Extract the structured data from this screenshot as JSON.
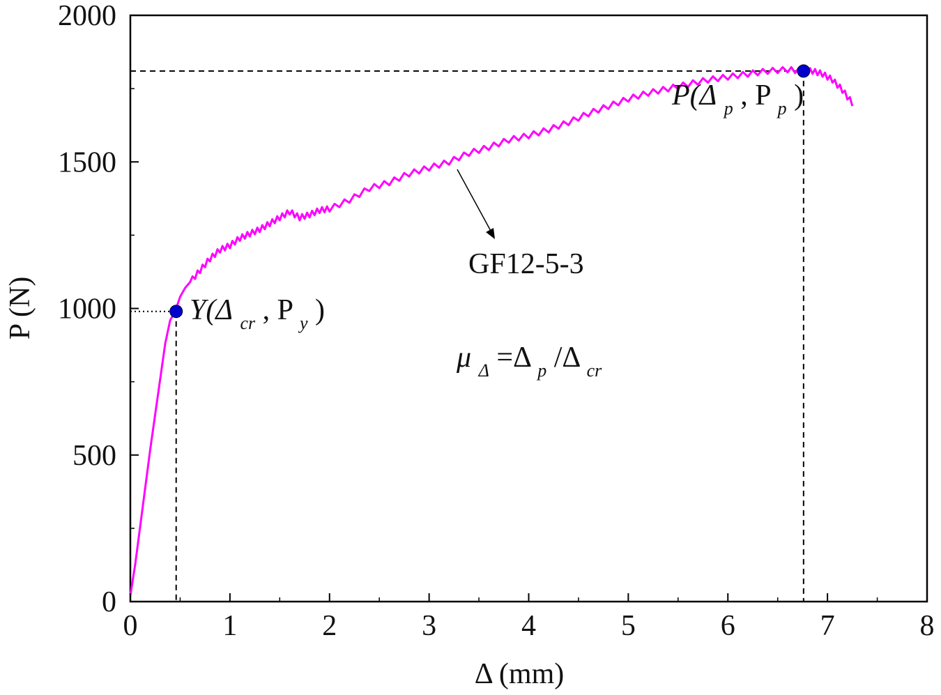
{
  "chart_data": {
    "type": "line",
    "xlabel": "Δ (mm)",
    "ylabel": "P (N)",
    "xlim": [
      0,
      8
    ],
    "ylim": [
      0,
      2000
    ],
    "xticks": [
      0,
      1,
      2,
      3,
      4,
      5,
      6,
      7,
      8
    ],
    "yticks": [
      0,
      500,
      1000,
      1500,
      2000
    ],
    "grid": false,
    "legend": "none",
    "series": [
      {
        "name": "GF12-5-3",
        "color": "#ff00ff",
        "x": [
          0.0,
          0.05,
          0.1,
          0.15,
          0.2,
          0.25,
          0.3,
          0.35,
          0.4,
          0.45,
          0.5,
          0.55,
          0.6,
          0.7,
          0.8,
          0.9,
          1.0,
          1.1,
          1.2,
          1.3,
          1.4,
          1.5,
          1.6,
          1.7,
          1.8,
          1.9,
          2.0,
          2.2,
          2.4,
          2.6,
          2.8,
          3.0,
          3.2,
          3.4,
          3.6,
          3.8,
          4.0,
          4.2,
          4.4,
          4.6,
          4.8,
          5.0,
          5.2,
          5.4,
          5.6,
          5.8,
          6.0,
          6.2,
          6.4,
          6.6,
          6.75,
          6.85,
          6.95,
          7.05,
          7.15,
          7.25
        ],
        "y": [
          20,
          130,
          260,
          390,
          520,
          640,
          760,
          880,
          960,
          990,
          1040,
          1070,
          1090,
          1130,
          1170,
          1200,
          1215,
          1240,
          1255,
          1270,
          1290,
          1310,
          1330,
          1310,
          1320,
          1335,
          1340,
          1370,
          1410,
          1430,
          1460,
          1480,
          1500,
          1530,
          1550,
          1575,
          1590,
          1610,
          1635,
          1665,
          1690,
          1715,
          1735,
          1750,
          1765,
          1780,
          1790,
          1800,
          1810,
          1815,
          1810,
          1810,
          1800,
          1780,
          1745,
          1700
        ]
      }
    ],
    "markers": [
      {
        "x": 0.46,
        "y": 990,
        "color": "#0000cc"
      },
      {
        "x": 6.76,
        "y": 1810,
        "color": "#0000cc"
      }
    ],
    "reference_lines": [
      {
        "from": [
          0.0,
          1810
        ],
        "to": [
          6.76,
          1810
        ],
        "style": "dashed"
      },
      {
        "from": [
          6.76,
          1810
        ],
        "to": [
          6.76,
          0
        ],
        "style": "dashed"
      },
      {
        "from": [
          0.46,
          990
        ],
        "to": [
          0.46,
          0
        ],
        "style": "dashed"
      },
      {
        "from": [
          0.0,
          990
        ],
        "to": [
          0.46,
          990
        ],
        "style": "dotted"
      }
    ],
    "annotations": {
      "curve_label": "GF12-5-3",
      "yield_point": {
        "main": "Y(Δ",
        "sub1": "cr",
        "mid": ", P",
        "sub2": "y",
        "end": ")"
      },
      "peak_point": {
        "main": "P(Δ",
        "sub1": "p",
        "mid": ", P",
        "sub2": "p",
        "end": ")"
      },
      "ductility": {
        "mu": "μ",
        "mu_sub": "Δ",
        "eq": "=Δ",
        "sub1": "p",
        "slash": "/Δ",
        "sub2": "cr"
      }
    }
  }
}
